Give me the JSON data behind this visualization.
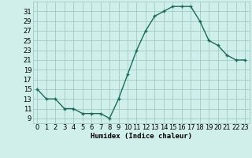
{
  "x": [
    0,
    1,
    2,
    3,
    4,
    5,
    6,
    7,
    8,
    9,
    10,
    11,
    12,
    13,
    14,
    15,
    16,
    17,
    18,
    19,
    20,
    21,
    22,
    23
  ],
  "y": [
    15,
    13,
    13,
    11,
    11,
    10,
    10,
    10,
    9,
    13,
    18,
    23,
    27,
    30,
    31,
    32,
    32,
    32,
    29,
    25,
    24,
    22,
    21,
    21
  ],
  "line_color": "#1a6b5a",
  "marker_color": "#1a6b5a",
  "bg_color": "#d0eeea",
  "grid_color": "#a0ccc8",
  "xlabel": "Humidex (Indice chaleur)",
  "xlim": [
    -0.5,
    23.5
  ],
  "ylim": [
    8,
    33
  ],
  "yticks": [
    9,
    11,
    13,
    15,
    17,
    19,
    21,
    23,
    25,
    27,
    29,
    31
  ],
  "xticks": [
    0,
    1,
    2,
    3,
    4,
    5,
    6,
    7,
    8,
    9,
    10,
    11,
    12,
    13,
    14,
    15,
    16,
    17,
    18,
    19,
    20,
    21,
    22,
    23
  ],
  "xlabel_fontsize": 6.5,
  "tick_fontsize": 6.0
}
